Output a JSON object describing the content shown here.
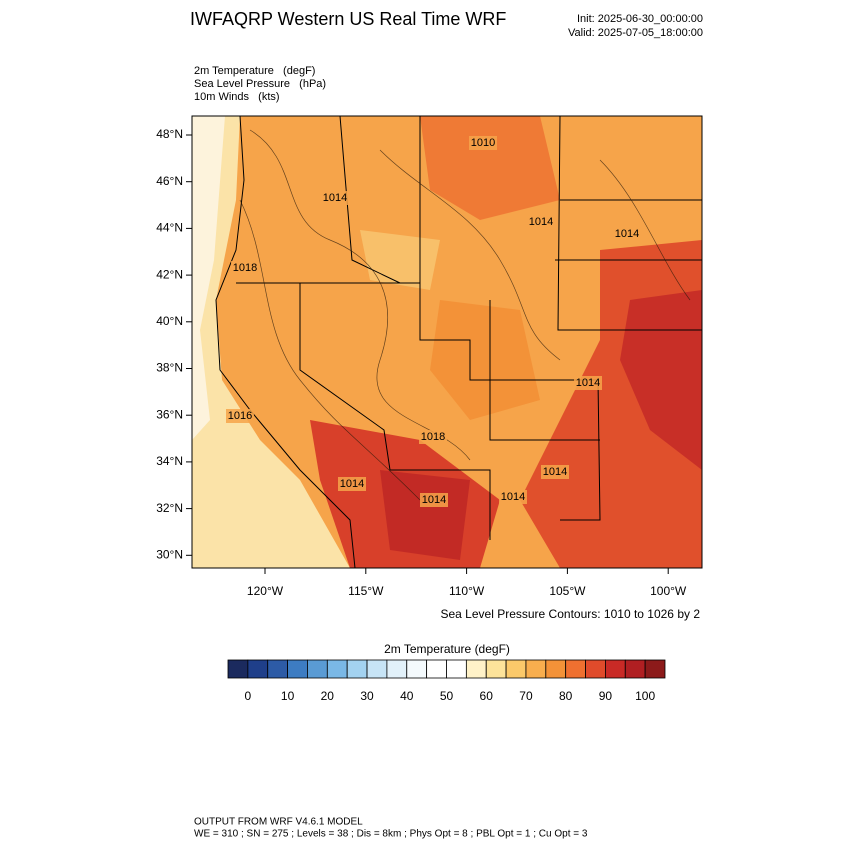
{
  "header": {
    "title": "IWFAQRP Western US Real Time WRF",
    "init": "Init: 2025-06-30_00:00:00",
    "valid": "Valid: 2025-07-05_18:00:00"
  },
  "fields": [
    "2m Temperature   (degF)",
    "Sea Level Pressure   (hPa)",
    "10m Winds   (kts)"
  ],
  "map": {
    "lat_labels": [
      "48°N",
      "46°N",
      "44°N",
      "42°N",
      "40°N",
      "38°N",
      "36°N",
      "34°N",
      "32°N",
      "30°N"
    ],
    "lon_labels": [
      "120°W",
      "115°W",
      "110°W",
      "105°W",
      "100°W"
    ],
    "contour_labels": [
      "1010",
      "1014",
      "1014",
      "1014",
      "1018",
      "1016",
      "1018",
      "1014",
      "1014",
      "1014",
      "1014",
      "1014"
    ],
    "contour_note": "Sea Level Pressure Contours: 1010 to 1026 by 2"
  },
  "colorbar": {
    "title": "2m Temperature  (degF)",
    "colors": [
      "#1b2a5e",
      "#1f3f8a",
      "#2d5ba6",
      "#3d7cc2",
      "#5a9bd4",
      "#7ab8e6",
      "#a3d2f0",
      "#c7e4f6",
      "#e2f1fa",
      "#f4fafd",
      "#ffffff",
      "#ffffff",
      "#fff2c8",
      "#fde39a",
      "#fbc96a",
      "#f8ae4e",
      "#f39238",
      "#ef7030",
      "#e04b2b",
      "#c92a26",
      "#b01f22",
      "#8c1a1a"
    ],
    "ticks": [
      "0",
      "10",
      "20",
      "30",
      "40",
      "50",
      "60",
      "70",
      "80",
      "90",
      "100"
    ]
  },
  "footer": {
    "model": "OUTPUT FROM WRF V4.6.1 MODEL",
    "details": "WE = 310 ; SN = 275 ; Levels = 38 ; Dis = 8km ; Phys Opt = 8 ; PBL Opt = 1 ; Cu Opt = 3"
  }
}
